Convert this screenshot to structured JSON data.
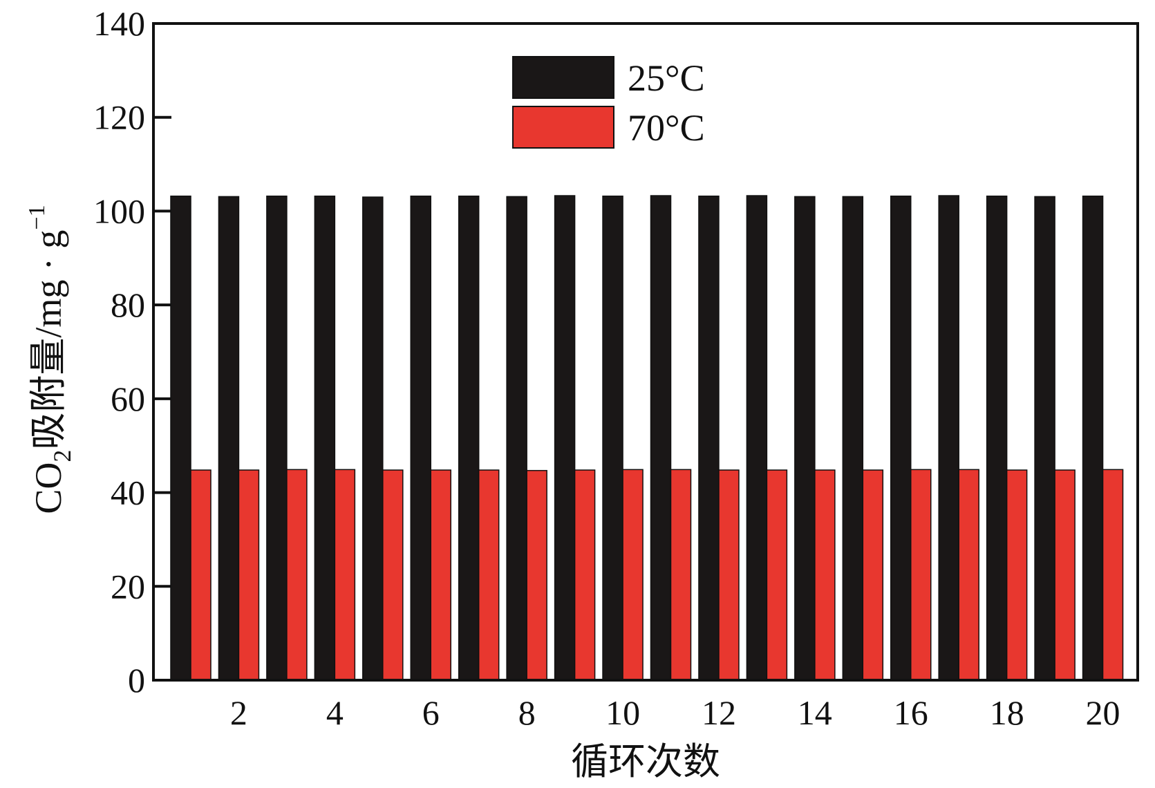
{
  "chart_data": {
    "type": "bar",
    "xlabel": "循环次数",
    "ylabel": {
      "main": "CO",
      "sub": "2",
      "rest": "吸附量/mg · g",
      "sup": "−1"
    },
    "ylim": [
      0,
      140
    ],
    "yticks": [
      0,
      20,
      40,
      60,
      80,
      100,
      120,
      140
    ],
    "categories": [
      1,
      2,
      3,
      4,
      5,
      6,
      7,
      8,
      9,
      10,
      11,
      12,
      13,
      14,
      15,
      16,
      17,
      18,
      19,
      20
    ],
    "xtick_labels": [
      2,
      4,
      6,
      8,
      10,
      12,
      14,
      16,
      18,
      20
    ],
    "legend_position": "top-center",
    "grid": false,
    "series": [
      {
        "name": "25°C",
        "color": "#1a1717",
        "values": [
          103.2,
          103.1,
          103.2,
          103.2,
          103.0,
          103.2,
          103.2,
          103.1,
          103.3,
          103.2,
          103.3,
          103.2,
          103.3,
          103.1,
          103.1,
          103.2,
          103.3,
          103.2,
          103.1,
          103.2
        ]
      },
      {
        "name": "70°C",
        "color": "#e8372f",
        "values": [
          44.8,
          44.8,
          44.9,
          44.9,
          44.8,
          44.8,
          44.8,
          44.7,
          44.8,
          44.9,
          44.9,
          44.8,
          44.8,
          44.8,
          44.8,
          44.9,
          44.9,
          44.8,
          44.8,
          44.9
        ]
      }
    ]
  }
}
